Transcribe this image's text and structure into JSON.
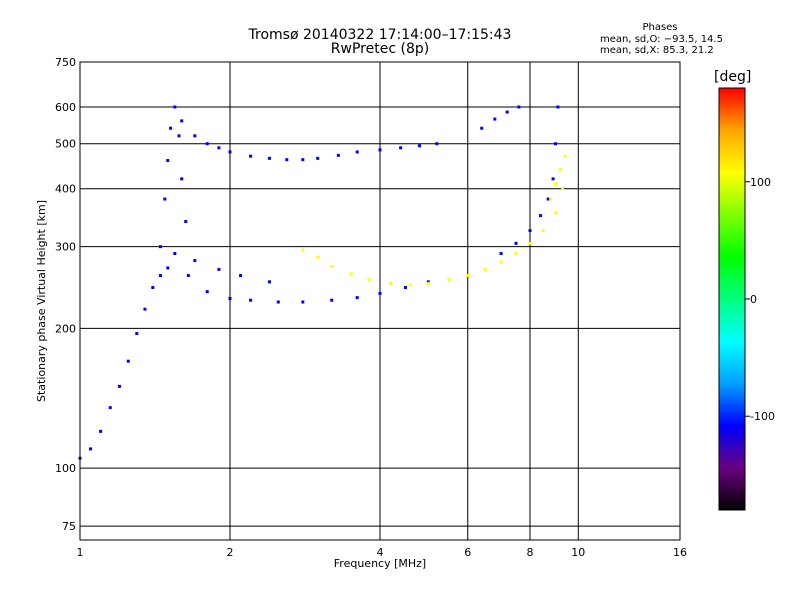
{
  "chart_data": {
    "type": "scatter",
    "title": "Tromsø 20140322 17:14:00–17:15:43",
    "subtitle": "RwPretec (8p)",
    "xlabel": "Frequency [MHz]",
    "ylabel": "Stationary phase Virtual Height [km]",
    "x_scale": "log",
    "y_scale": "log",
    "xlim": [
      1,
      16
    ],
    "ylim": [
      70,
      750
    ],
    "x_ticks": [
      1,
      2,
      4,
      6,
      8,
      10,
      16
    ],
    "y_ticks": [
      75,
      100,
      200,
      300,
      400,
      500,
      600,
      750
    ],
    "grid": true,
    "phase_info": {
      "title": "Phases",
      "line_o": "mean, sd,O: −93.5, 14.5",
      "line_x": "mean, sd,X:  85.3, 21.2"
    },
    "colorbar": {
      "label": "[deg]",
      "range": [
        -180,
        180
      ],
      "ticks": [
        100,
        0,
        -100
      ],
      "colors": [
        "#000000",
        "#6a0080",
        "#0000ff",
        "#00a0ff",
        "#00ffff",
        "#00ff80",
        "#00ff00",
        "#80ff00",
        "#ffff00",
        "#ffa500",
        "#ff0000"
      ]
    },
    "series": [
      {
        "color_phase_deg": -100,
        "traces": [
          {
            "x": [
              1.0,
              1.05,
              1.1,
              1.15,
              1.2,
              1.25,
              1.3,
              1.35,
              1.4,
              1.45,
              1.5
            ],
            "y": [
              105,
              110,
              120,
              135,
              150,
              170,
              195,
              220,
              245,
              260,
              270
            ]
          },
          {
            "x": [
              1.45,
              1.48,
              1.5,
              1.52,
              1.55,
              1.58,
              1.6,
              1.63
            ],
            "y": [
              300,
              380,
              460,
              540,
              600,
              520,
              420,
              340
            ]
          },
          {
            "x": [
              1.6,
              1.7,
              1.8,
              1.9,
              2.0,
              2.2,
              2.4,
              2.6,
              2.8,
              3.0,
              3.3,
              3.6,
              4.0,
              4.4,
              4.8,
              5.2
            ],
            "y": [
              560,
              520,
              500,
              490,
              480,
              470,
              465,
              462,
              462,
              465,
              472,
              480,
              485,
              490,
              495,
              500
            ]
          },
          {
            "x": [
              1.65,
              1.8,
              2.0,
              2.2,
              2.5,
              2.8,
              3.2,
              3.6,
              4.0,
              4.5,
              5.0
            ],
            "y": [
              260,
              240,
              232,
              230,
              228,
              228,
              230,
              233,
              238,
              245,
              252
            ]
          },
          {
            "x": [
              1.55,
              1.7,
              1.9,
              2.1,
              2.4
            ],
            "y": [
              290,
              280,
              268,
              260,
              252
            ]
          },
          {
            "x": [
              7.0,
              7.5,
              8.0,
              8.4,
              8.7,
              8.9,
              9.0,
              9.1
            ],
            "y": [
              290,
              305,
              325,
              350,
              380,
              420,
              500,
              600
            ]
          },
          {
            "x": [
              6.4,
              6.8,
              7.2,
              7.6
            ],
            "y": [
              540,
              565,
              585,
              600
            ]
          }
        ]
      },
      {
        "color_phase_deg": 100,
        "traces": [
          {
            "x": [
              2.8,
              3.0,
              3.2,
              3.5,
              3.8,
              4.2,
              4.6,
              5.0,
              5.5,
              6.0,
              6.5,
              7.0,
              7.5,
              8.0,
              8.5,
              9.0,
              9.3
            ],
            "y": [
              295,
              285,
              272,
              262,
              255,
              250,
              248,
              250,
              255,
              260,
              268,
              278,
              290,
              305,
              325,
              355,
              400
            ]
          },
          {
            "x": [
              8.8,
              9.0,
              9.2,
              9.4
            ],
            "y": [
              380,
              410,
              440,
              470
            ]
          }
        ]
      }
    ]
  }
}
